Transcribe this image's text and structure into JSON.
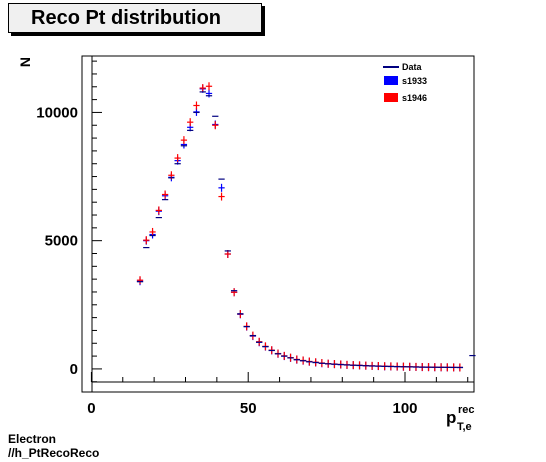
{
  "title": "Reco Pt distribution",
  "footer": {
    "line1": "Electron",
    "line2": "//h_PtRecoReco"
  },
  "colors": {
    "data": "#000080",
    "s1933": "#0000ff",
    "s1946": "#ff0000"
  },
  "chart_data": {
    "type": "scatter",
    "title": "Reco Pt distribution",
    "xlabel": "p",
    "xlabel_sup": "rec",
    "xlabel_sub": "T,e",
    "ylabel": "N",
    "xlim": [
      -3,
      122
    ],
    "ylim": [
      -900,
      12200
    ],
    "xticks": [
      0,
      50,
      100
    ],
    "yticks": [
      0,
      5000,
      10000
    ],
    "legend": [
      "Data",
      "s1933",
      "s1946"
    ],
    "legend_position": "top-right",
    "series": [
      {
        "name": "s1933",
        "x": [
          15.5,
          17.5,
          19.5,
          21.5,
          23.5,
          25.5,
          27.5,
          29.5,
          31.5,
          33.5,
          35.5,
          37.5,
          39.5,
          41.5,
          43.5,
          45.5,
          47.5,
          49.5,
          51.5,
          53.5,
          55.5,
          57.5,
          59.5,
          61.5,
          63.5,
          65.5,
          67.5,
          69.5,
          71.5,
          73.5,
          75.5,
          77.5,
          79.5,
          81.5,
          83.5,
          85.5,
          87.5,
          89.5,
          91.5,
          93.5,
          95.5,
          97.5,
          99.5,
          101.5,
          103.5,
          105.5,
          107.5,
          109.5,
          111.5,
          113.5,
          115.5,
          117.5
        ],
        "y": [
          3420,
          5000,
          5240,
          6150,
          6750,
          7470,
          8120,
          8750,
          9420,
          10020,
          10920,
          10740,
          9530,
          7060,
          4480,
          2990,
          2130,
          1650,
          1280,
          1040,
          870,
          720,
          590,
          500,
          430,
          360,
          320,
          280,
          250,
          220,
          200,
          185,
          170,
          155,
          145,
          135,
          125,
          115,
          110,
          100,
          95,
          90,
          85,
          80,
          75,
          70,
          68,
          65,
          62,
          60,
          58,
          56
        ]
      },
      {
        "name": "s1946",
        "x": [
          15.5,
          17.5,
          19.5,
          21.5,
          23.5,
          25.5,
          27.5,
          29.5,
          31.5,
          33.5,
          35.5,
          37.5,
          39.5,
          41.5,
          43.5,
          45.5,
          47.5,
          49.5,
          51.5,
          53.5,
          55.5,
          57.5,
          59.5,
          61.5,
          63.5,
          65.5,
          67.5,
          69.5,
          71.5,
          73.5,
          75.5,
          77.5,
          79.5,
          81.5,
          83.5,
          85.5,
          87.5,
          89.5,
          91.5,
          93.5,
          95.5,
          97.5,
          99.5,
          101.5,
          103.5,
          105.5,
          107.5,
          109.5,
          111.5,
          113.5,
          115.5,
          117.5
        ],
        "y": [
          3460,
          5020,
          5340,
          6180,
          6800,
          7550,
          8220,
          8920,
          9620,
          10270,
          10950,
          11020,
          9500,
          6720,
          4480,
          2990,
          2140,
          1660,
          1300,
          1060,
          880,
          730,
          600,
          510,
          440,
          370,
          330,
          290,
          260,
          230,
          205,
          190,
          175,
          160,
          150,
          140,
          130,
          120,
          114,
          105,
          100,
          95,
          90,
          85,
          80,
          75,
          72,
          68,
          65,
          62,
          60,
          58
        ]
      },
      {
        "name": "Data",
        "x": [
          15.5,
          17.5,
          19.5,
          21.5,
          23.5,
          25.5,
          27.5,
          29.5,
          31.5,
          33.5,
          35.5,
          37.5,
          39.5,
          41.5,
          43.5,
          45.5,
          47.5,
          49.5,
          51.5,
          53.5,
          55.5,
          57.5,
          59.5,
          61.5,
          63.5,
          65.5,
          67.5,
          69.5,
          71.5,
          73.5,
          75.5,
          77.5,
          79.5,
          81.5,
          83.5,
          85.5,
          87.5,
          89.5,
          91.5,
          93.5,
          95.5,
          97.5,
          99.5,
          101.5,
          103.5,
          105.5,
          107.5,
          109.5,
          111.5,
          113.5,
          115.5,
          117.5,
          121.5
        ],
        "y": [
          3400,
          4730,
          5200,
          5900,
          6600,
          7450,
          8000,
          8700,
          9300,
          10000,
          10800,
          10650,
          9850,
          7400,
          4600,
          3050,
          2150,
          1650,
          1300,
          1040,
          870,
          720,
          590,
          500,
          430,
          360,
          320,
          280,
          250,
          220,
          200,
          185,
          170,
          155,
          145,
          135,
          125,
          115,
          110,
          100,
          95,
          90,
          85,
          80,
          75,
          70,
          68,
          65,
          62,
          60,
          58,
          56,
          520
        ]
      }
    ]
  }
}
